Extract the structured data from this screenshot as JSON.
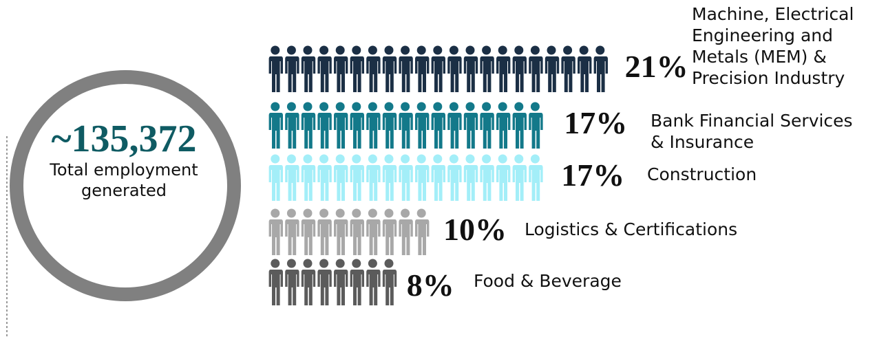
{
  "chart_data": {
    "type": "pictogram",
    "headline": "~135,372",
    "subtitle": "Total employment generated",
    "categories": [
      "Machine, Electrical Engineering and Metals (MEM) & Precision Industry",
      "Bank Financial Services & Insurance",
      "Construction",
      "Logistics & Certifications",
      "Food & Beverage"
    ],
    "values": [
      21,
      17,
      17,
      10,
      8
    ],
    "value_labels": [
      "21%",
      "17%",
      "17%",
      "10%",
      "8%"
    ],
    "colors": [
      "#1b2f45",
      "#13798a",
      "#a3eef8",
      "#a8a8a8",
      "#5b5b5b"
    ]
  }
}
